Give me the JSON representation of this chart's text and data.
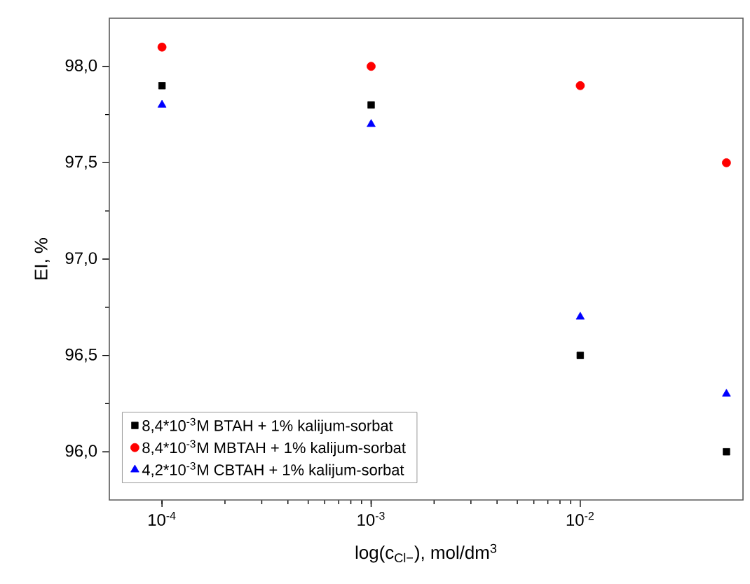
{
  "chart_data": {
    "type": "scatter",
    "xlabel": "log(c$_{Cl−}$), mol/dm$^{3}$",
    "ylabel": "EI, %",
    "log": "x",
    "x": [
      0.0001,
      0.001,
      0.01,
      0.05
    ],
    "series": [
      {
        "name": "8,4*10$^{-3}$M BTAH + 1% kalijum-sorbat",
        "color": "#000000",
        "marker": "square",
        "values": [
          97.9,
          97.8,
          96.5,
          96.0
        ]
      },
      {
        "name": "8,4*10$^{-3}$M MBTAH + 1% kalijum-sorbat",
        "color": "#ff0000",
        "marker": "circle",
        "values": [
          98.1,
          98.0,
          97.9,
          97.5
        ]
      },
      {
        "name": "4,2*10$^{-3}$M CBTAH + 1% kalijum-sorbat",
        "color": "#0000ff",
        "marker": "triangle",
        "values": [
          97.8,
          97.7,
          96.7,
          96.3
        ]
      }
    ],
    "xlim": [
      5.6e-05,
      0.06
    ],
    "xticks": [
      {
        "value": 0.0001,
        "label": "10$^{-4}$"
      },
      {
        "value": 0.001,
        "label": "10$^{-3}$"
      },
      {
        "value": 0.01,
        "label": "10$^{-2}$"
      }
    ],
    "ylim": [
      95.75,
      98.25
    ],
    "yticks": [
      {
        "value": 96.0,
        "label": "96,0"
      },
      {
        "value": 96.5,
        "label": "96,5"
      },
      {
        "value": 97.0,
        "label": "97,0"
      },
      {
        "value": 97.5,
        "label": "97,5"
      },
      {
        "value": 98.0,
        "label": "98,0"
      }
    ],
    "grid": false,
    "legend": "bottom left"
  }
}
